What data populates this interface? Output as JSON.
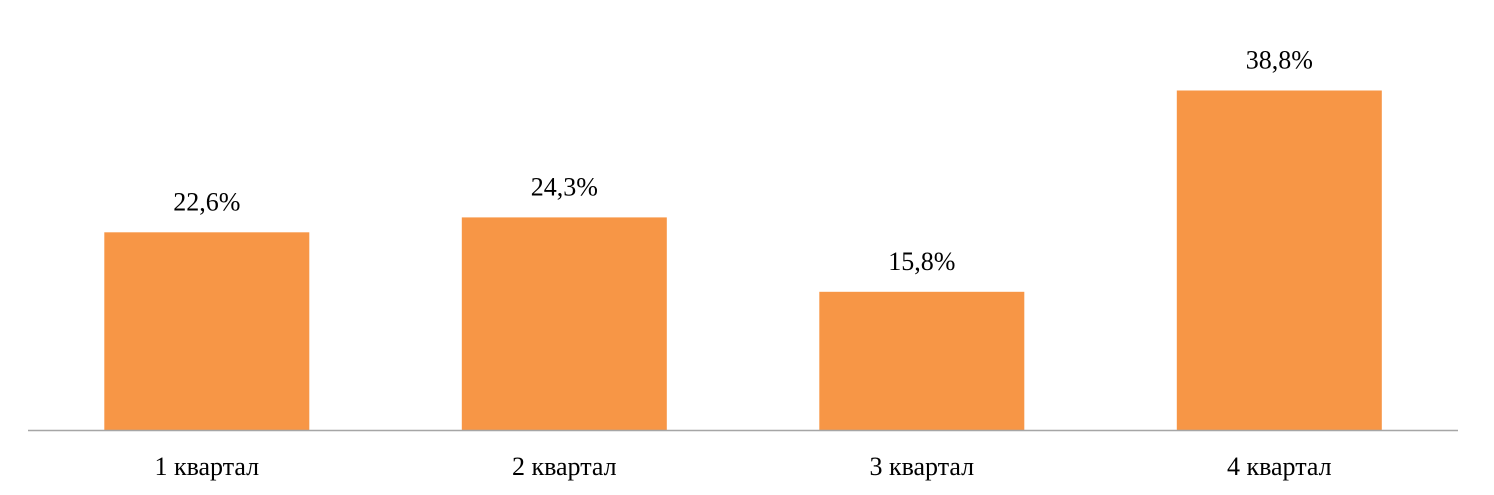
{
  "chart_data": {
    "type": "bar",
    "title": "",
    "xlabel": "",
    "ylabel": "",
    "categories": [
      "1 квартал",
      "2 квартал",
      "3 квартал",
      "4 квартал"
    ],
    "values": [
      22.6,
      24.3,
      15.8,
      38.8
    ],
    "value_labels": [
      "22,6%",
      "24,3%",
      "15,8%",
      "38,8%"
    ],
    "unit": "%",
    "ylim": [
      0,
      40
    ],
    "grid": false,
    "legend": "none",
    "bar_color": "#F79646",
    "axis_color": "#A6A6A6"
  }
}
